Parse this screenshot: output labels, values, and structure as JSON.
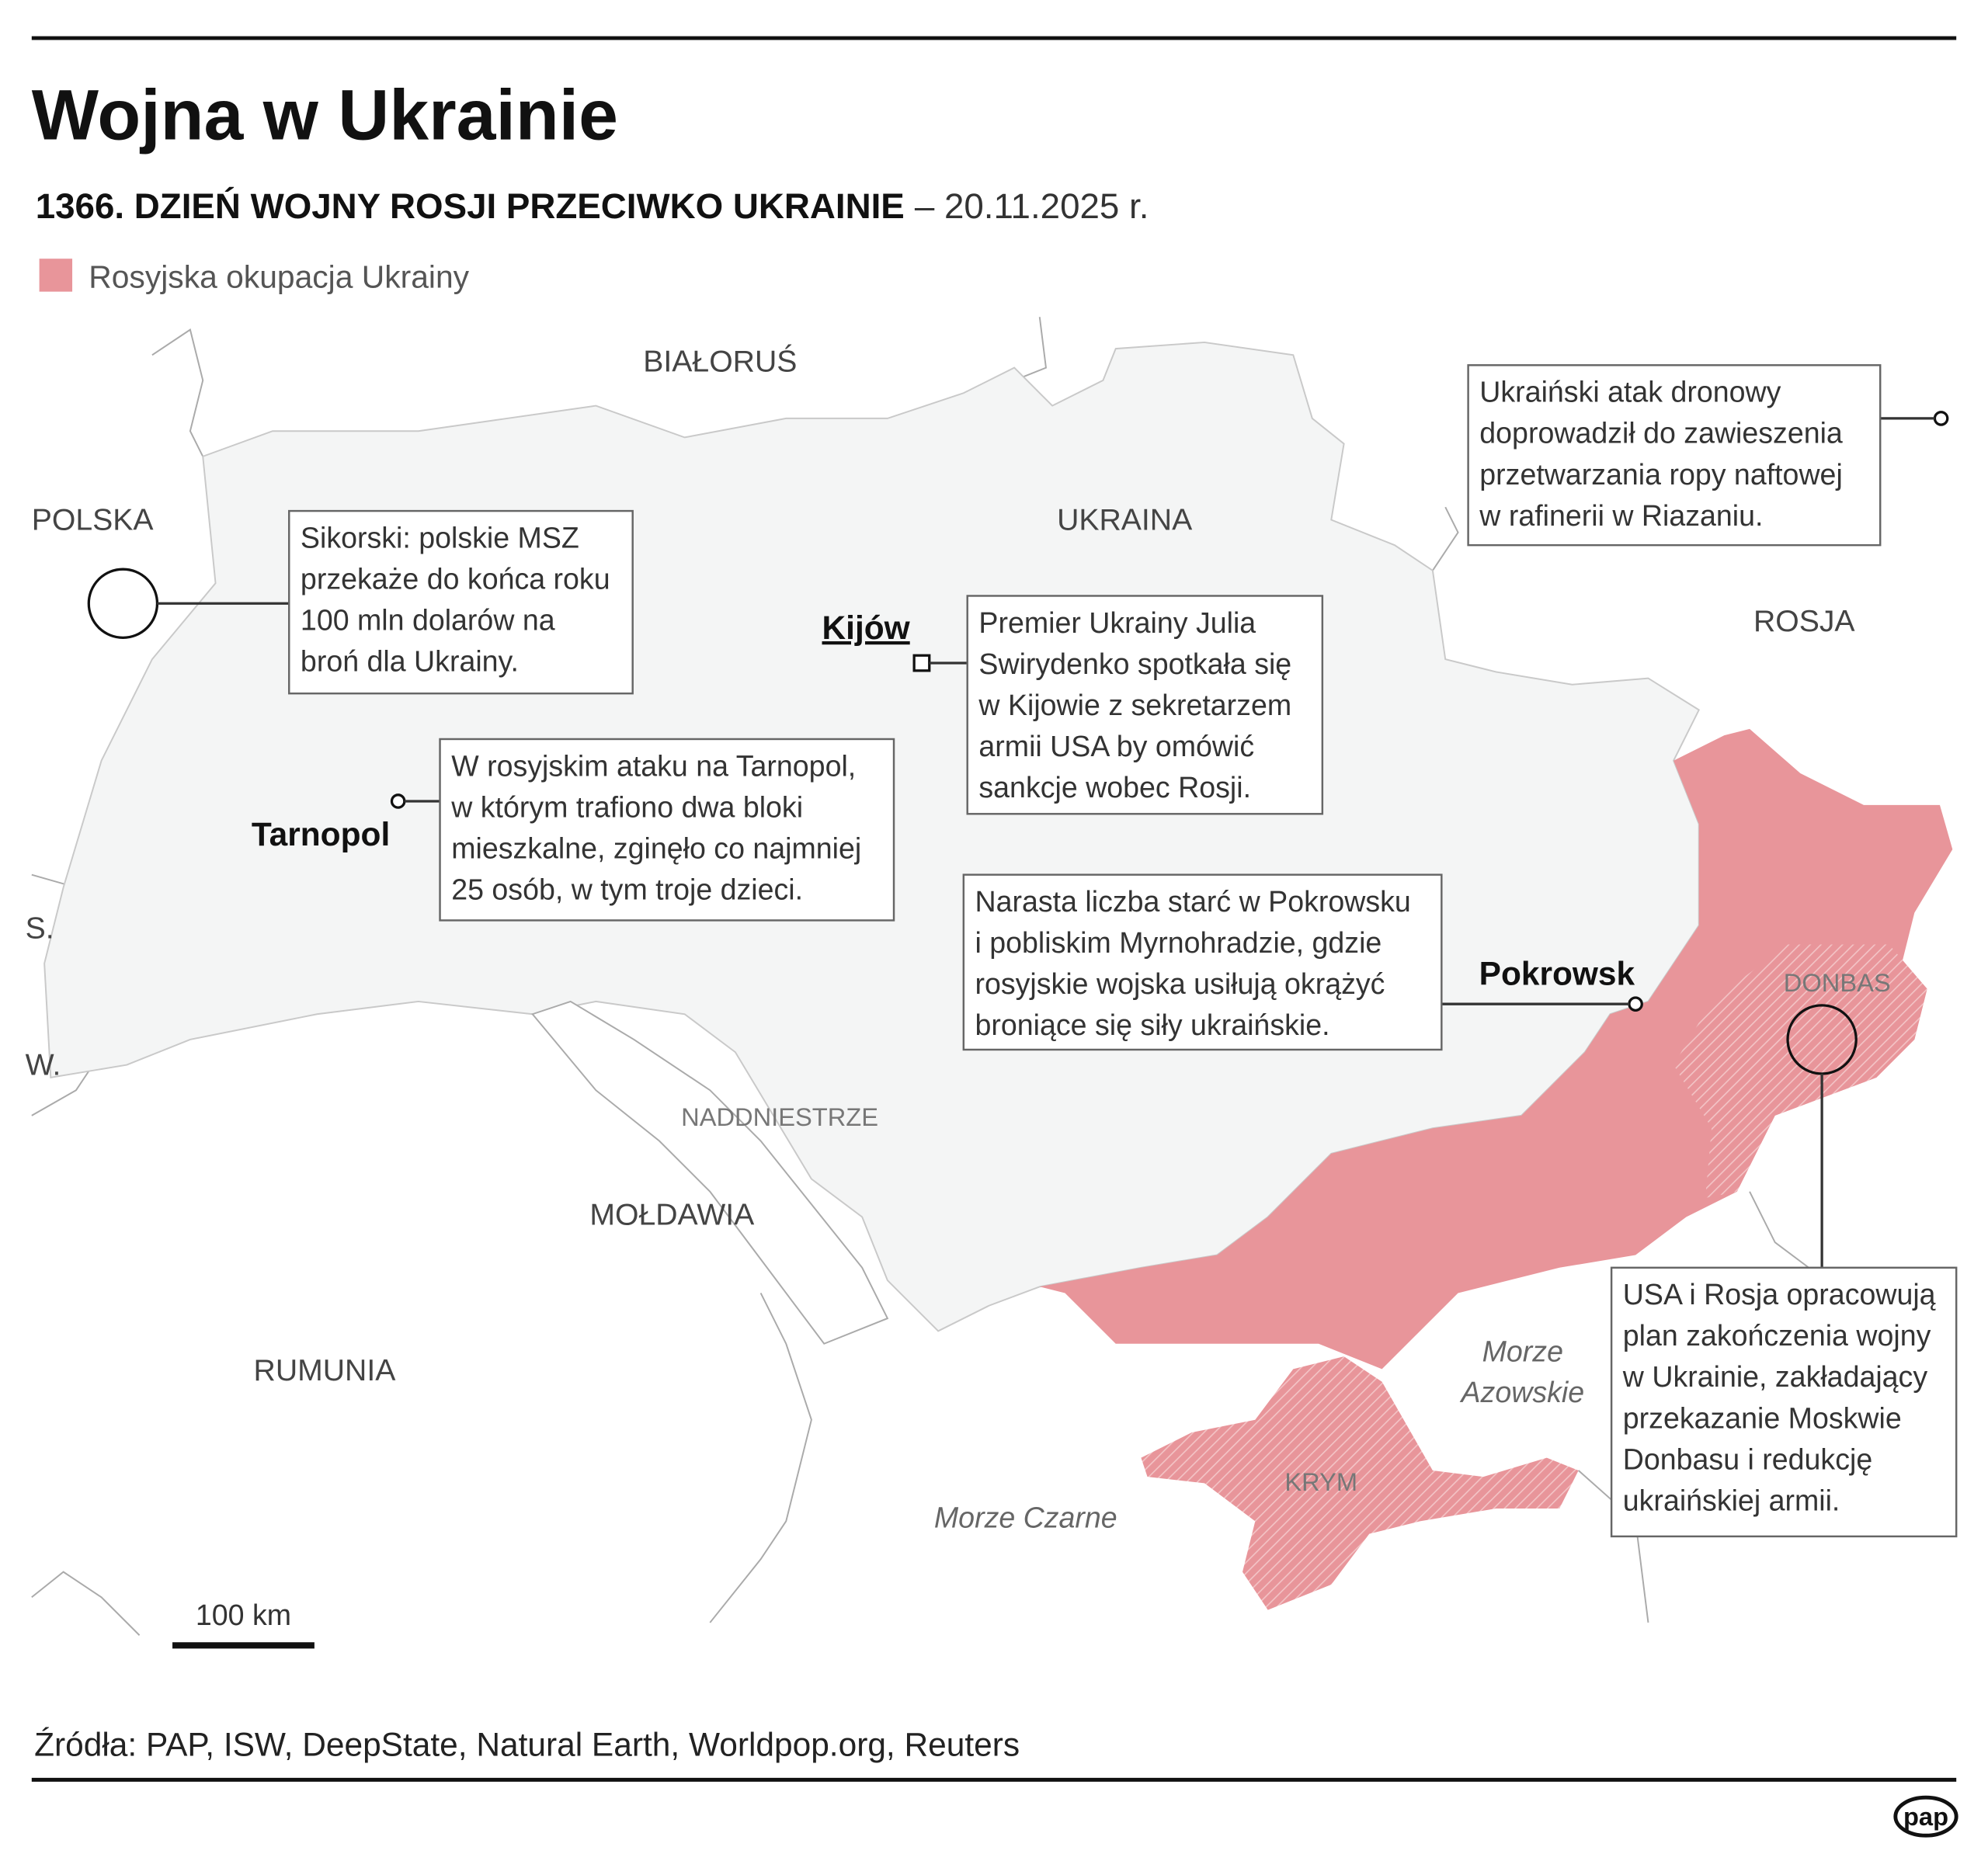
{
  "header": {
    "title": "Wojna w Ukrainie",
    "subtitle": "1366. DZIEŃ WOJNY ROSJI PRZECIWKO UKRAINIE",
    "date": "– 20.11.2025 r."
  },
  "legend": {
    "label": "Rosyjska okupacja Ukrainy"
  },
  "map": {
    "countries": [
      "BIAŁORUŚ",
      "POLSKA",
      "UKRAINA",
      "ROSJA",
      "MOŁDAWIA",
      "RUMUNIA",
      "S.",
      "W."
    ],
    "regions": [
      "NADDNIESTRZE",
      "DONBAS",
      "KRYM"
    ],
    "seas": [
      [
        "Morze",
        "Azowskie"
      ],
      [
        "Morze Czarne"
      ]
    ],
    "cities": [
      "Kijów",
      "Tarnopol",
      "Pokrowsk"
    ],
    "scale": "100 km"
  },
  "annotations": [
    [
      "Sikorski: polskie MSZ",
      "przekaże do końca roku",
      "100 mln dolarów na",
      "broń dla Ukrainy."
    ],
    [
      "W rosyjskim ataku na Tarnopol,",
      "w którym trafiono dwa bloki",
      "mieszkalne, zginęło co najmniej",
      "25 osób, w tym troje dzieci."
    ],
    [
      "Premier Ukrainy Julia",
      "Swirydenko spotkała się",
      "w Kijowie z sekretarzem",
      "armii USA by omówić",
      "sankcje wobec Rosji."
    ],
    [
      "Narasta liczba starć w Pokrowsku",
      "i pobliskim Myrnohradzie, gdzie",
      "rosyjskie wojska usiłują okrążyć",
      "broniące się siły ukraińskie."
    ],
    [
      "Ukraiński atak dronowy",
      "doprowadził do zawieszenia",
      "przetwarzania ropy naftowej",
      "w rafinerii w Riazaniu."
    ],
    [
      "USA i Rosja opracowują",
      "plan zakończenia wojny",
      "w Ukrainie, zakładający",
      "przekazanie Moskwie",
      "Donbasu i redukcję",
      "ukraińskiej armii."
    ]
  ],
  "footer": {
    "source": "Źródła: PAP, ISW, DeepState, Natural Earth, Worldpop.org, Reuters",
    "logo": "pap"
  }
}
